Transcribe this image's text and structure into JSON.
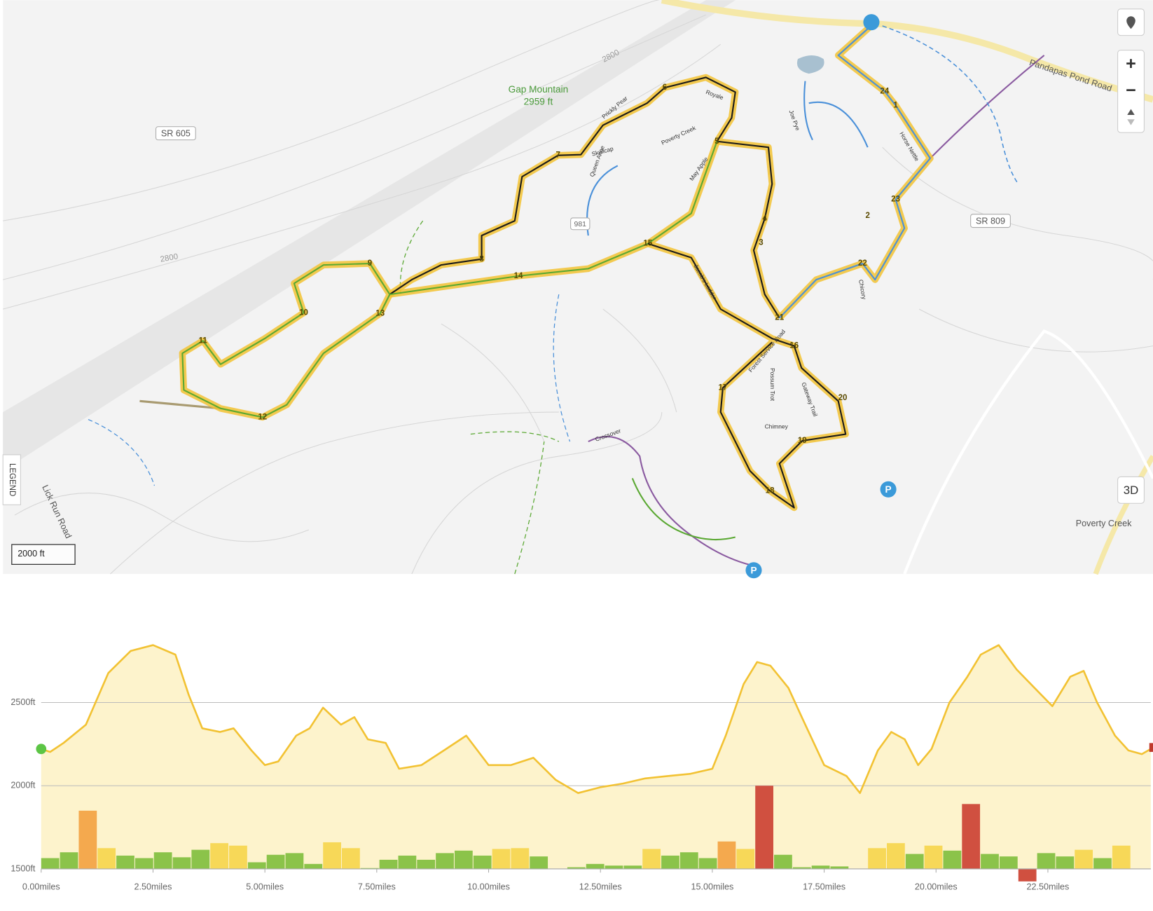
{
  "map": {
    "peak_name": "Gap Mountain",
    "peak_elevation": "2959 ft",
    "roads": [
      "SR 605",
      "SR 809",
      "Pandapas Pond Road",
      "Lick Run Road",
      "Forest Service Road"
    ],
    "place": "Poverty Creek",
    "contours": [
      "2800",
      "2800"
    ],
    "route_number": "981",
    "waypoints": [
      "1",
      "2",
      "3",
      "4",
      "5",
      "6",
      "7",
      "8",
      "9",
      "10",
      "11",
      "12",
      "13",
      "14",
      "15",
      "16",
      "17",
      "18",
      "19",
      "20",
      "21",
      "22",
      "23",
      "24"
    ],
    "trail_names": [
      "Poverty Creek",
      "May Apple",
      "Royale",
      "Joe Pye",
      "Horse Nettle",
      "Prickly Pear",
      "Skullcap",
      "Jacob's Ladder",
      "Chimney",
      "Gateway Trail",
      "Possum Trot",
      "Queen Anne",
      "Chicory",
      "Crossover"
    ],
    "parking": [
      "P",
      "P"
    ],
    "scale": "2000 ft",
    "controls": {
      "legend": "LEGEND",
      "view_3d": "3D",
      "zoom_in": "+",
      "zoom_out": "−"
    }
  },
  "chart_data": {
    "type": "area",
    "x": [
      0,
      0.2,
      0.5,
      1,
      1.5,
      2,
      2.5,
      3,
      3.3,
      3.6,
      4,
      4.3,
      4.7,
      5,
      5.3,
      5.7,
      6,
      6.3,
      6.7,
      7,
      7.3,
      7.7,
      8,
      8.5,
      9,
      9.5,
      10,
      10.5,
      11,
      11.5,
      12,
      12.5,
      13,
      13.5,
      14,
      14.5,
      15,
      15.3,
      15.7,
      16,
      16.3,
      16.7,
      17,
      17.5,
      18,
      18.3,
      18.7,
      19,
      19.3,
      19.6,
      19.9,
      20.3,
      20.7,
      21,
      21.4,
      21.8,
      22.2,
      22.6,
      23,
      23.3,
      23.6,
      24,
      24.3,
      24.6,
      24.8
    ],
    "series": [
      {
        "color": "#f2c233",
        "fill": "#fdf3cc",
        "values": [
          2221,
          2203,
          2257,
          2367,
          2677,
          2810,
          2845,
          2788,
          2544,
          2345,
          2323,
          2345,
          2212,
          2124,
          2146,
          2301,
          2345,
          2469,
          2367,
          2412,
          2279,
          2257,
          2102,
          2124,
          2212,
          2301,
          2124,
          2124,
          2168,
          2035,
          1956,
          1991,
          2013,
          2044,
          2058,
          2071,
          2102,
          2301,
          2611,
          2743,
          2721,
          2588,
          2412,
          2124,
          2058,
          1956,
          2212,
          2323,
          2279,
          2124,
          2221,
          2500,
          2655,
          2788,
          2845,
          2699,
          2588,
          2478,
          2655,
          2690,
          2500,
          2301,
          2212,
          2190,
          2221
        ]
      }
    ],
    "xlim": [
      0,
      24.8
    ],
    "ylim": [
      1500,
      2950
    ],
    "xticks": [
      {
        "value": 0,
        "label": "0.00miles"
      },
      {
        "value": 2.5,
        "label": "2.50miles"
      },
      {
        "value": 5,
        "label": "5.00miles"
      },
      {
        "value": 7.5,
        "label": "7.50miles"
      },
      {
        "value": 10,
        "label": "10.00miles"
      },
      {
        "value": 12.5,
        "label": "12.50miles"
      },
      {
        "value": 15,
        "label": "15.00miles"
      },
      {
        "value": 17.5,
        "label": "17.50miles"
      },
      {
        "value": 20,
        "label": "20.00miles"
      },
      {
        "value": 22.5,
        "label": "22.50miles"
      }
    ],
    "yticks": [
      {
        "value": 1500,
        "label": "1500ft"
      },
      {
        "value": 2000,
        "label": "2000ft"
      },
      {
        "value": 2500,
        "label": "2500ft"
      }
    ],
    "grid": true,
    "start_marker_color": "#5cc545",
    "end_marker_color": "#c0392b",
    "grade_bars": {
      "bins": [
        0,
        0.42,
        0.84,
        1.26,
        1.68,
        2.1,
        2.52,
        2.94,
        3.36,
        3.78,
        4.2,
        4.62,
        5.04,
        5.46,
        5.88,
        6.3,
        6.72,
        7.14,
        7.56,
        7.98,
        8.4,
        8.82,
        9.24,
        9.66,
        10.08,
        10.5,
        10.92,
        11.34,
        11.76,
        12.18,
        12.6,
        13.02,
        13.44,
        13.86,
        14.28,
        14.7,
        15.12,
        15.54,
        15.96,
        16.38,
        16.8,
        17.22,
        17.64,
        18.06,
        18.48,
        18.9,
        19.32,
        19.74,
        20.16,
        20.58,
        21,
        21.42,
        21.84,
        22.26,
        22.68,
        23.1,
        23.52,
        23.94,
        24.36
      ],
      "values": [
        1565,
        1600,
        1850,
        1625,
        1580,
        1565,
        1600,
        1570,
        1615,
        1655,
        1640,
        1540,
        1585,
        1595,
        1530,
        1660,
        1625,
        1505,
        1555,
        1580,
        1555,
        1595,
        1610,
        1580,
        1620,
        1625,
        1575,
        1500,
        1510,
        1530,
        1520,
        1520,
        1620,
        1580,
        1600,
        1565,
        1665,
        1620,
        2000,
        1585,
        1510,
        1520,
        1515,
        1500,
        1625,
        1655,
        1590,
        1640,
        1610,
        1890,
        1590,
        1575,
        1425,
        1595,
        1575,
        1615,
        1565,
        1640
      ],
      "colors": [
        "#8bc34a",
        "#8bc34a",
        "#f4a94e",
        "#f7d858",
        "#8bc34a",
        "#8bc34a",
        "#8bc34a",
        "#8bc34a",
        "#8bc34a",
        "#f7d858",
        "#f7d858",
        "#8bc34a",
        "#8bc34a",
        "#8bc34a",
        "#8bc34a",
        "#f7d858",
        "#f7d858",
        "#8bc34a",
        "#8bc34a",
        "#8bc34a",
        "#8bc34a",
        "#8bc34a",
        "#8bc34a",
        "#8bc34a",
        "#f7d858",
        "#f7d858",
        "#8bc34a",
        "#8bc34a",
        "#8bc34a",
        "#8bc34a",
        "#8bc34a",
        "#8bc34a",
        "#f7d858",
        "#8bc34a",
        "#8bc34a",
        "#8bc34a",
        "#f4a94e",
        "#f7d858",
        "#d05040",
        "#8bc34a",
        "#8bc34a",
        "#8bc34a",
        "#8bc34a",
        "#8bc34a",
        "#f7d858",
        "#f7d858",
        "#8bc34a",
        "#f7d858",
        "#8bc34a",
        "#d05040",
        "#8bc34a",
        "#8bc34a",
        "#d05040",
        "#8bc34a",
        "#8bc34a",
        "#f7d858",
        "#8bc34a",
        "#f7d858"
      ]
    }
  }
}
